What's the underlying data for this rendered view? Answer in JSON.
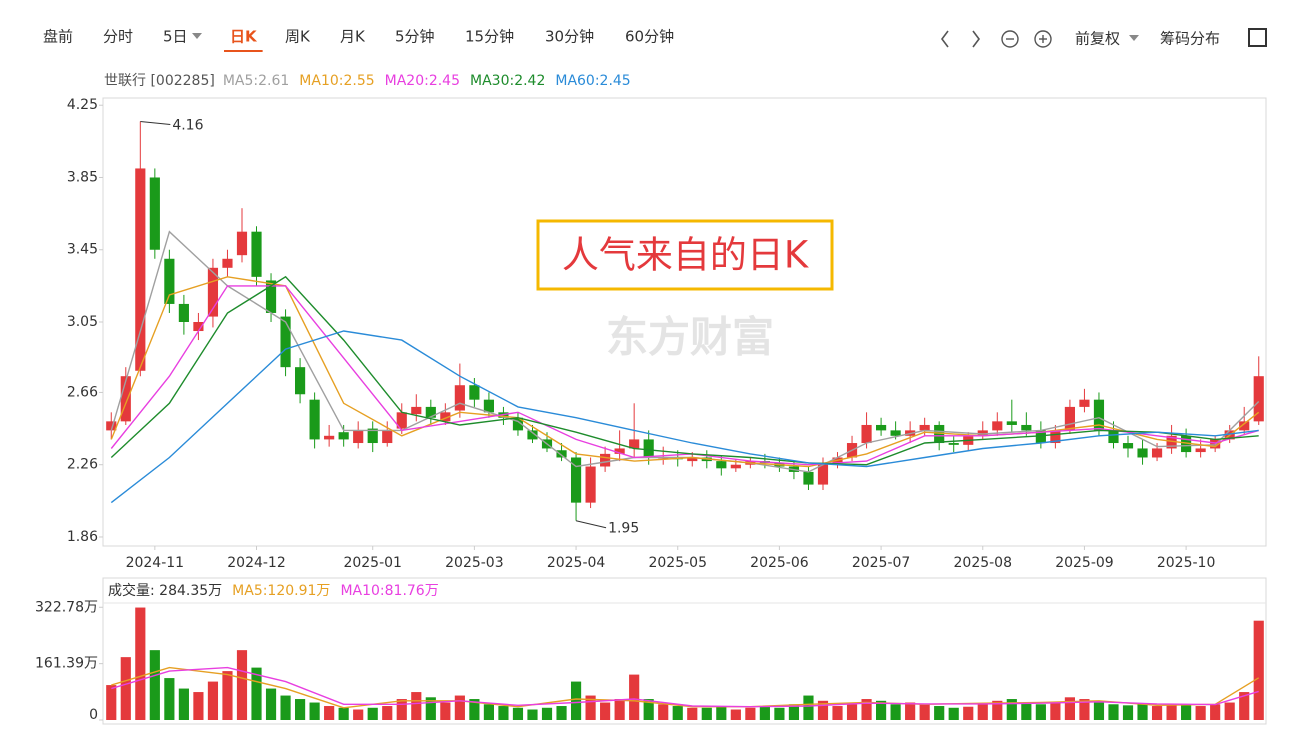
{
  "toolbar": {
    "tabs": [
      "盘前",
      "分时",
      "5日",
      "日K",
      "周K",
      "月K",
      "5分钟",
      "15分钟",
      "30分钟",
      "60分钟"
    ],
    "active": 3,
    "right": [
      "前复权",
      "筹码分布"
    ]
  },
  "chart_data": [
    {
      "type": "candlestick",
      "title": "世联行 [002285]",
      "up_color": "#e4393c",
      "down_color": "#1a9a1a",
      "ylim": [
        1.81,
        4.29
      ],
      "yticks": [
        4.25,
        3.85,
        3.45,
        3.05,
        2.66,
        2.26,
        1.86
      ],
      "categories": [
        null,
        null,
        null,
        "2024-11",
        null,
        null,
        null,
        null,
        null,
        null,
        "2024-12",
        null,
        null,
        null,
        null,
        null,
        null,
        null,
        "2025-01",
        null,
        null,
        null,
        null,
        null,
        null,
        "2025-03",
        null,
        null,
        null,
        null,
        null,
        null,
        "2025-04",
        null,
        null,
        null,
        null,
        null,
        null,
        "2025-05",
        null,
        null,
        null,
        null,
        null,
        null,
        "2025-06",
        null,
        null,
        null,
        null,
        null,
        null,
        "2025-07",
        null,
        null,
        null,
        null,
        null,
        null,
        "2025-08",
        null,
        null,
        null,
        null,
        null,
        null,
        "2025-09",
        null,
        null,
        null,
        null,
        null,
        null,
        "2025-10",
        null,
        null,
        null,
        null,
        null
      ],
      "open": [
        2.45,
        2.5,
        2.78,
        3.85,
        3.4,
        3.15,
        3.0,
        3.08,
        3.35,
        3.42,
        3.55,
        3.28,
        3.08,
        2.8,
        2.62,
        2.4,
        2.44,
        2.38,
        2.46,
        2.38,
        2.46,
        2.54,
        2.58,
        2.5,
        2.56,
        2.7,
        2.62,
        2.55,
        2.52,
        2.45,
        2.4,
        2.34,
        2.3,
        2.05,
        2.25,
        2.32,
        2.35,
        2.4,
        2.3,
        2.3,
        2.28,
        2.3,
        2.28,
        2.24,
        2.26,
        2.28,
        2.27,
        2.25,
        2.22,
        2.15,
        2.27,
        2.3,
        2.38,
        2.48,
        2.45,
        2.42,
        2.45,
        2.48,
        2.38,
        2.37,
        2.42,
        2.45,
        2.5,
        2.48,
        2.45,
        2.38,
        2.45,
        2.58,
        2.62,
        2.45,
        2.38,
        2.35,
        2.3,
        2.35,
        2.42,
        2.33,
        2.35,
        2.4,
        2.45,
        2.5
      ],
      "high": [
        2.55,
        2.8,
        4.16,
        3.9,
        3.45,
        3.2,
        3.1,
        3.4,
        3.45,
        3.68,
        3.58,
        3.32,
        3.12,
        2.85,
        2.66,
        2.48,
        2.48,
        2.5,
        2.5,
        2.5,
        2.6,
        2.65,
        2.62,
        2.6,
        2.82,
        2.74,
        2.66,
        2.58,
        2.55,
        2.48,
        2.44,
        2.38,
        2.33,
        2.3,
        2.36,
        2.45,
        2.6,
        2.45,
        2.36,
        2.34,
        2.33,
        2.34,
        2.31,
        2.29,
        2.3,
        2.32,
        2.3,
        2.28,
        2.25,
        2.3,
        2.33,
        2.42,
        2.55,
        2.52,
        2.5,
        2.5,
        2.52,
        2.5,
        2.42,
        2.44,
        2.5,
        2.55,
        2.62,
        2.55,
        2.5,
        2.48,
        2.62,
        2.68,
        2.66,
        2.5,
        2.42,
        2.4,
        2.38,
        2.48,
        2.46,
        2.4,
        2.42,
        2.48,
        2.58,
        2.86
      ],
      "low": [
        2.4,
        2.48,
        2.75,
        3.4,
        3.1,
        2.98,
        2.95,
        3.02,
        3.3,
        3.38,
        3.25,
        3.05,
        2.75,
        2.6,
        2.35,
        2.36,
        2.36,
        2.35,
        2.33,
        2.36,
        2.43,
        2.5,
        2.48,
        2.48,
        2.52,
        2.58,
        2.52,
        2.48,
        2.42,
        2.38,
        2.33,
        2.28,
        1.95,
        2.02,
        2.22,
        2.28,
        2.3,
        2.26,
        2.26,
        2.25,
        2.25,
        2.24,
        2.2,
        2.22,
        2.24,
        2.24,
        2.22,
        2.18,
        2.12,
        2.12,
        2.24,
        2.28,
        2.35,
        2.42,
        2.4,
        2.38,
        2.42,
        2.34,
        2.33,
        2.34,
        2.4,
        2.42,
        2.44,
        2.42,
        2.35,
        2.35,
        2.43,
        2.55,
        2.42,
        2.35,
        2.3,
        2.26,
        2.28,
        2.32,
        2.3,
        2.3,
        2.33,
        2.38,
        2.43,
        2.48
      ],
      "close": [
        2.5,
        2.75,
        3.9,
        3.45,
        3.15,
        3.05,
        3.05,
        3.35,
        3.4,
        3.55,
        3.3,
        3.1,
        2.8,
        2.65,
        2.4,
        2.42,
        2.4,
        2.45,
        2.38,
        2.45,
        2.55,
        2.58,
        2.52,
        2.55,
        2.7,
        2.62,
        2.55,
        2.52,
        2.45,
        2.4,
        2.35,
        2.3,
        2.05,
        2.25,
        2.32,
        2.35,
        2.4,
        2.3,
        2.3,
        2.29,
        2.3,
        2.28,
        2.24,
        2.26,
        2.28,
        2.27,
        2.25,
        2.22,
        2.15,
        2.27,
        2.3,
        2.38,
        2.48,
        2.45,
        2.42,
        2.45,
        2.48,
        2.38,
        2.37,
        2.42,
        2.45,
        2.5,
        2.48,
        2.45,
        2.38,
        2.45,
        2.58,
        2.62,
        2.45,
        2.38,
        2.35,
        2.3,
        2.35,
        2.42,
        2.33,
        2.35,
        2.4,
        2.45,
        2.5,
        2.75
      ],
      "series": [
        {
          "name": "MA5:2.61",
          "color": "#a0a0a0",
          "x": [
            0,
            4,
            8,
            12,
            16,
            20,
            24,
            28,
            32,
            36,
            40,
            44,
            48,
            52,
            56,
            60,
            64,
            68,
            72,
            76,
            79
          ],
          "values": [
            2.45,
            3.55,
            3.25,
            3.05,
            2.45,
            2.45,
            2.6,
            2.5,
            2.25,
            2.3,
            2.3,
            2.27,
            2.22,
            2.38,
            2.45,
            2.43,
            2.45,
            2.52,
            2.36,
            2.37,
            2.61
          ]
        },
        {
          "name": "MA10:2.55",
          "color": "#e6a023",
          "x": [
            0,
            4,
            8,
            12,
            16,
            20,
            24,
            28,
            32,
            36,
            40,
            44,
            48,
            52,
            56,
            60,
            64,
            68,
            72,
            76,
            79
          ],
          "values": [
            2.4,
            3.2,
            3.3,
            3.25,
            2.6,
            2.42,
            2.55,
            2.52,
            2.32,
            2.28,
            2.3,
            2.27,
            2.25,
            2.32,
            2.44,
            2.42,
            2.44,
            2.48,
            2.4,
            2.36,
            2.55
          ]
        },
        {
          "name": "MA20:2.45",
          "color": "#e83fe0",
          "x": [
            0,
            4,
            8,
            12,
            16,
            20,
            24,
            28,
            32,
            36,
            40,
            44,
            48,
            52,
            56,
            60,
            64,
            68,
            72,
            76,
            79
          ],
          "values": [
            2.35,
            2.75,
            3.25,
            3.25,
            2.85,
            2.45,
            2.5,
            2.55,
            2.4,
            2.3,
            2.32,
            2.28,
            2.26,
            2.28,
            2.42,
            2.42,
            2.44,
            2.46,
            2.42,
            2.38,
            2.45
          ]
        },
        {
          "name": "MA30:2.42",
          "color": "#1e8c2c",
          "x": [
            0,
            4,
            8,
            12,
            16,
            20,
            24,
            28,
            32,
            36,
            40,
            44,
            48,
            52,
            56,
            60,
            64,
            68,
            72,
            76,
            79
          ],
          "values": [
            2.3,
            2.6,
            3.1,
            3.3,
            2.95,
            2.55,
            2.48,
            2.52,
            2.44,
            2.35,
            2.32,
            2.3,
            2.27,
            2.26,
            2.38,
            2.4,
            2.42,
            2.45,
            2.44,
            2.4,
            2.42
          ]
        },
        {
          "name": "MA60:2.45",
          "color": "#2a8bd8",
          "x": [
            0,
            4,
            8,
            12,
            16,
            20,
            24,
            28,
            32,
            36,
            40,
            44,
            48,
            52,
            56,
            60,
            64,
            68,
            72,
            76,
            79
          ],
          "values": [
            2.05,
            2.3,
            2.6,
            2.9,
            3.0,
            2.95,
            2.75,
            2.58,
            2.52,
            2.45,
            2.38,
            2.32,
            2.27,
            2.25,
            2.3,
            2.35,
            2.38,
            2.42,
            2.44,
            2.42,
            2.45
          ]
        }
      ],
      "callout": "人气来自的日K",
      "watermark": "东方财富"
    },
    {
      "type": "bar",
      "title": "成交量: 284.35万",
      "ylim": [
        0,
        335
      ],
      "yticks": [
        0,
        {
          "value": 161.39,
          "label": "161.39万"
        },
        {
          "value": 322.78,
          "label": "322.78万"
        }
      ],
      "values": [
        100,
        180,
        322,
        200,
        120,
        90,
        80,
        110,
        140,
        200,
        150,
        90,
        70,
        60,
        50,
        40,
        35,
        30,
        35,
        40,
        60,
        80,
        65,
        50,
        70,
        60,
        45,
        40,
        35,
        30,
        35,
        40,
        110,
        70,
        50,
        60,
        130,
        60,
        45,
        40,
        35,
        35,
        40,
        30,
        35,
        40,
        35,
        45,
        70,
        55,
        40,
        45,
        60,
        55,
        45,
        50,
        45,
        40,
        35,
        38,
        45,
        55,
        60,
        50,
        45,
        50,
        65,
        60,
        50,
        45,
        42,
        45,
        40,
        45,
        42,
        40,
        45,
        50,
        80,
        284.35
      ],
      "series": [
        {
          "name": "MA5:120.91万",
          "color": "#e6a023",
          "x": [
            0,
            4,
            8,
            12,
            16,
            20,
            24,
            28,
            32,
            36,
            40,
            44,
            48,
            52,
            56,
            60,
            64,
            68,
            72,
            76,
            79
          ],
          "values": [
            100,
            150,
            130,
            90,
            35,
            55,
            55,
            38,
            60,
            55,
            38,
            38,
            45,
            50,
            45,
            48,
            50,
            55,
            42,
            45,
            120.91
          ]
        },
        {
          "name": "MA10:81.76万",
          "color": "#e83fe0",
          "x": [
            0,
            4,
            8,
            12,
            16,
            20,
            24,
            28,
            32,
            36,
            40,
            44,
            48,
            52,
            56,
            60,
            64,
            68,
            72,
            76,
            79
          ],
          "values": [
            90,
            140,
            150,
            110,
            45,
            45,
            55,
            42,
            50,
            60,
            40,
            38,
            40,
            48,
            46,
            46,
            48,
            52,
            46,
            44,
            81.76
          ]
        }
      ]
    }
  ]
}
